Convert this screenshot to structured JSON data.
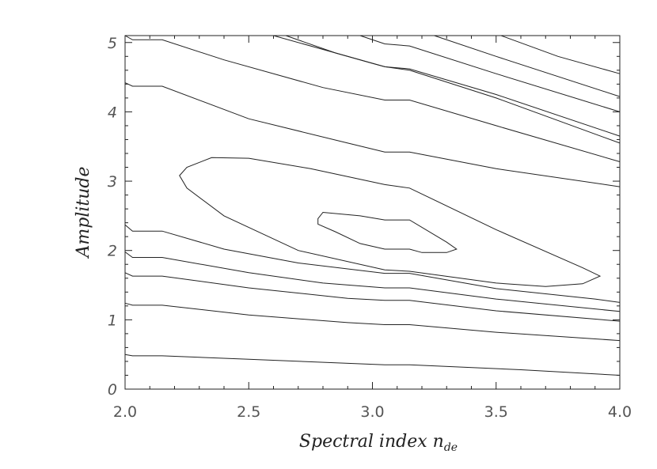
{
  "chart_data": {
    "type": "contour",
    "xlabel_main": "Spectral index ",
    "xlabel_symbol": "n",
    "xlabel_subscript": "de",
    "ylabel": "Amplitude",
    "xlim": [
      2.0,
      4.0
    ],
    "ylim": [
      0,
      5.1
    ],
    "x_ticks": [
      "2.0",
      "2.5",
      "3.0",
      "3.5",
      "4.0"
    ],
    "y_ticks": [
      "0",
      "1",
      "2",
      "3",
      "4",
      "5"
    ],
    "grid": false,
    "contours": [
      {
        "closed": true,
        "points": [
          [
            2.78,
            2.46
          ],
          [
            2.8,
            2.55
          ],
          [
            2.95,
            2.5
          ],
          [
            3.05,
            2.44
          ],
          [
            3.15,
            2.44
          ],
          [
            3.3,
            2.12
          ],
          [
            3.34,
            2.02
          ],
          [
            3.3,
            1.97
          ],
          [
            3.2,
            1.97
          ],
          [
            3.15,
            2.02
          ],
          [
            3.05,
            2.02
          ],
          [
            2.95,
            2.1
          ],
          [
            2.85,
            2.27
          ],
          [
            2.78,
            2.38
          ]
        ]
      },
      {
        "closed": true,
        "points": [
          [
            2.22,
            3.08
          ],
          [
            2.25,
            3.2
          ],
          [
            2.35,
            3.34
          ],
          [
            2.5,
            3.33
          ],
          [
            2.75,
            3.18
          ],
          [
            3.05,
            2.95
          ],
          [
            3.15,
            2.9
          ],
          [
            3.5,
            2.3
          ],
          [
            3.85,
            1.75
          ],
          [
            3.92,
            1.63
          ],
          [
            3.85,
            1.52
          ],
          [
            3.7,
            1.48
          ],
          [
            3.5,
            1.53
          ],
          [
            3.15,
            1.7
          ],
          [
            3.05,
            1.72
          ],
          [
            2.7,
            2.0
          ],
          [
            2.4,
            2.5
          ],
          [
            2.25,
            2.9
          ]
        ]
      },
      {
        "closed": false,
        "points": [
          [
            2.0,
            5.1
          ],
          [
            2.03,
            5.04
          ],
          [
            2.15,
            5.04
          ],
          [
            2.4,
            4.75
          ],
          [
            2.8,
            4.35
          ],
          [
            3.05,
            4.17
          ],
          [
            3.15,
            4.17
          ],
          [
            3.5,
            3.8
          ],
          [
            4.0,
            3.28
          ]
        ]
      },
      {
        "closed": false,
        "points": [
          [
            2.0,
            4.42
          ],
          [
            2.03,
            4.37
          ],
          [
            2.15,
            4.37
          ],
          [
            2.5,
            3.9
          ],
          [
            2.9,
            3.55
          ],
          [
            3.05,
            3.42
          ],
          [
            3.15,
            3.42
          ],
          [
            3.5,
            3.18
          ],
          [
            4.0,
            2.92
          ]
        ]
      },
      {
        "closed": false,
        "points": [
          [
            2.0,
            2.37
          ],
          [
            2.03,
            2.28
          ],
          [
            2.15,
            2.28
          ],
          [
            2.4,
            2.02
          ],
          [
            2.7,
            1.82
          ],
          [
            3.05,
            1.67
          ],
          [
            3.15,
            1.67
          ],
          [
            3.5,
            1.45
          ],
          [
            3.9,
            1.3
          ],
          [
            4.0,
            1.25
          ]
        ]
      },
      {
        "closed": false,
        "points": [
          [
            2.0,
            1.98
          ],
          [
            2.03,
            1.9
          ],
          [
            2.15,
            1.9
          ],
          [
            2.5,
            1.68
          ],
          [
            2.8,
            1.53
          ],
          [
            3.05,
            1.46
          ],
          [
            3.15,
            1.46
          ],
          [
            3.5,
            1.3
          ],
          [
            4.0,
            1.12
          ]
        ]
      },
      {
        "closed": false,
        "points": [
          [
            2.0,
            1.68
          ],
          [
            2.03,
            1.63
          ],
          [
            2.15,
            1.63
          ],
          [
            2.5,
            1.46
          ],
          [
            2.9,
            1.31
          ],
          [
            3.05,
            1.28
          ],
          [
            3.15,
            1.28
          ],
          [
            3.5,
            1.13
          ],
          [
            4.0,
            0.98
          ]
        ]
      },
      {
        "closed": false,
        "points": [
          [
            2.0,
            1.24
          ],
          [
            2.03,
            1.21
          ],
          [
            2.15,
            1.21
          ],
          [
            2.5,
            1.07
          ],
          [
            2.9,
            0.96
          ],
          [
            3.05,
            0.93
          ],
          [
            3.15,
            0.93
          ],
          [
            3.5,
            0.82
          ],
          [
            4.0,
            0.7
          ]
        ]
      },
      {
        "closed": false,
        "points": [
          [
            2.0,
            0.5
          ],
          [
            2.03,
            0.48
          ],
          [
            2.15,
            0.48
          ],
          [
            2.5,
            0.43
          ],
          [
            3.05,
            0.35
          ],
          [
            3.15,
            0.35
          ],
          [
            3.6,
            0.28
          ],
          [
            4.0,
            0.2
          ]
        ]
      },
      {
        "closed": false,
        "points": [
          [
            2.65,
            5.1
          ],
          [
            2.85,
            4.85
          ],
          [
            3.05,
            4.65
          ],
          [
            3.15,
            4.62
          ],
          [
            3.5,
            4.25
          ],
          [
            4.0,
            3.65
          ]
        ]
      },
      {
        "closed": false,
        "points": [
          [
            2.6,
            5.1
          ],
          [
            2.8,
            4.9
          ],
          [
            3.0,
            4.7
          ],
          [
            3.05,
            4.65
          ],
          [
            3.15,
            4.6
          ],
          [
            3.5,
            4.2
          ],
          [
            4.0,
            3.55
          ]
        ]
      },
      {
        "closed": false,
        "points": [
          [
            3.25,
            5.1
          ],
          [
            3.5,
            4.8
          ],
          [
            4.0,
            4.22
          ]
        ]
      },
      {
        "closed": false,
        "points": [
          [
            3.52,
            5.1
          ],
          [
            3.75,
            4.8
          ],
          [
            4.0,
            4.55
          ]
        ]
      },
      {
        "closed": false,
        "points": [
          [
            2.95,
            5.1
          ],
          [
            3.05,
            4.98
          ],
          [
            3.15,
            4.95
          ],
          [
            3.5,
            4.55
          ],
          [
            4.0,
            4.0
          ]
        ]
      }
    ]
  }
}
